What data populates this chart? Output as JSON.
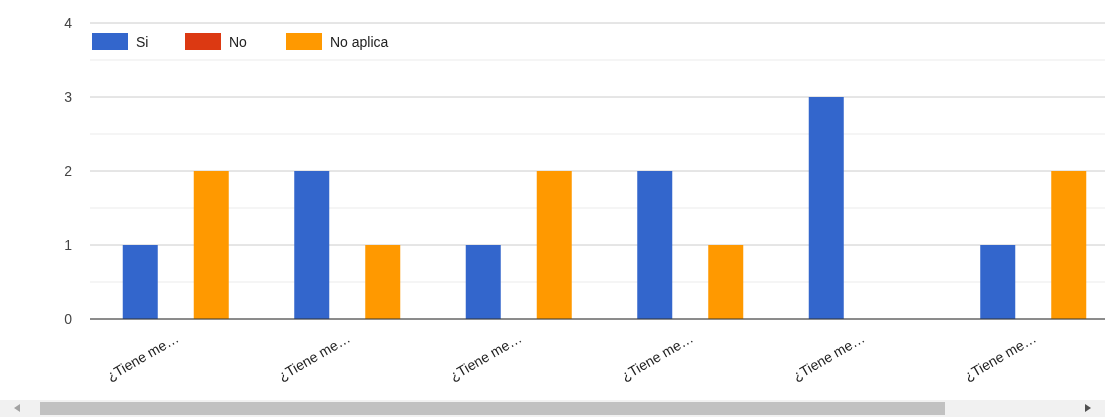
{
  "chart_data": {
    "type": "bar",
    "categories": [
      "¿Tiene me…",
      "¿Tiene me…",
      "¿Tiene me…",
      "¿Tiene me…",
      "¿Tiene me…",
      "¿Tiene me…"
    ],
    "series": [
      {
        "name": "Si",
        "color": "#3366cc",
        "values": [
          1,
          2,
          1,
          2,
          3,
          1
        ]
      },
      {
        "name": "No",
        "color": "#dc3912",
        "values": [
          0,
          0,
          0,
          0,
          0,
          0
        ]
      },
      {
        "name": "No aplica",
        "color": "#ff9900",
        "values": [
          2,
          1,
          2,
          1,
          0,
          2
        ]
      }
    ],
    "ylim": [
      0,
      4
    ],
    "yticks": [
      0,
      {
        "value": 0.5,
        "label": null
      },
      1,
      {
        "value": 1.5,
        "label": null
      },
      2,
      {
        "value": 2.5,
        "label": null
      },
      3,
      {
        "value": 3.5,
        "label": null
      },
      4
    ],
    "grid": true,
    "legend": "top left"
  }
}
